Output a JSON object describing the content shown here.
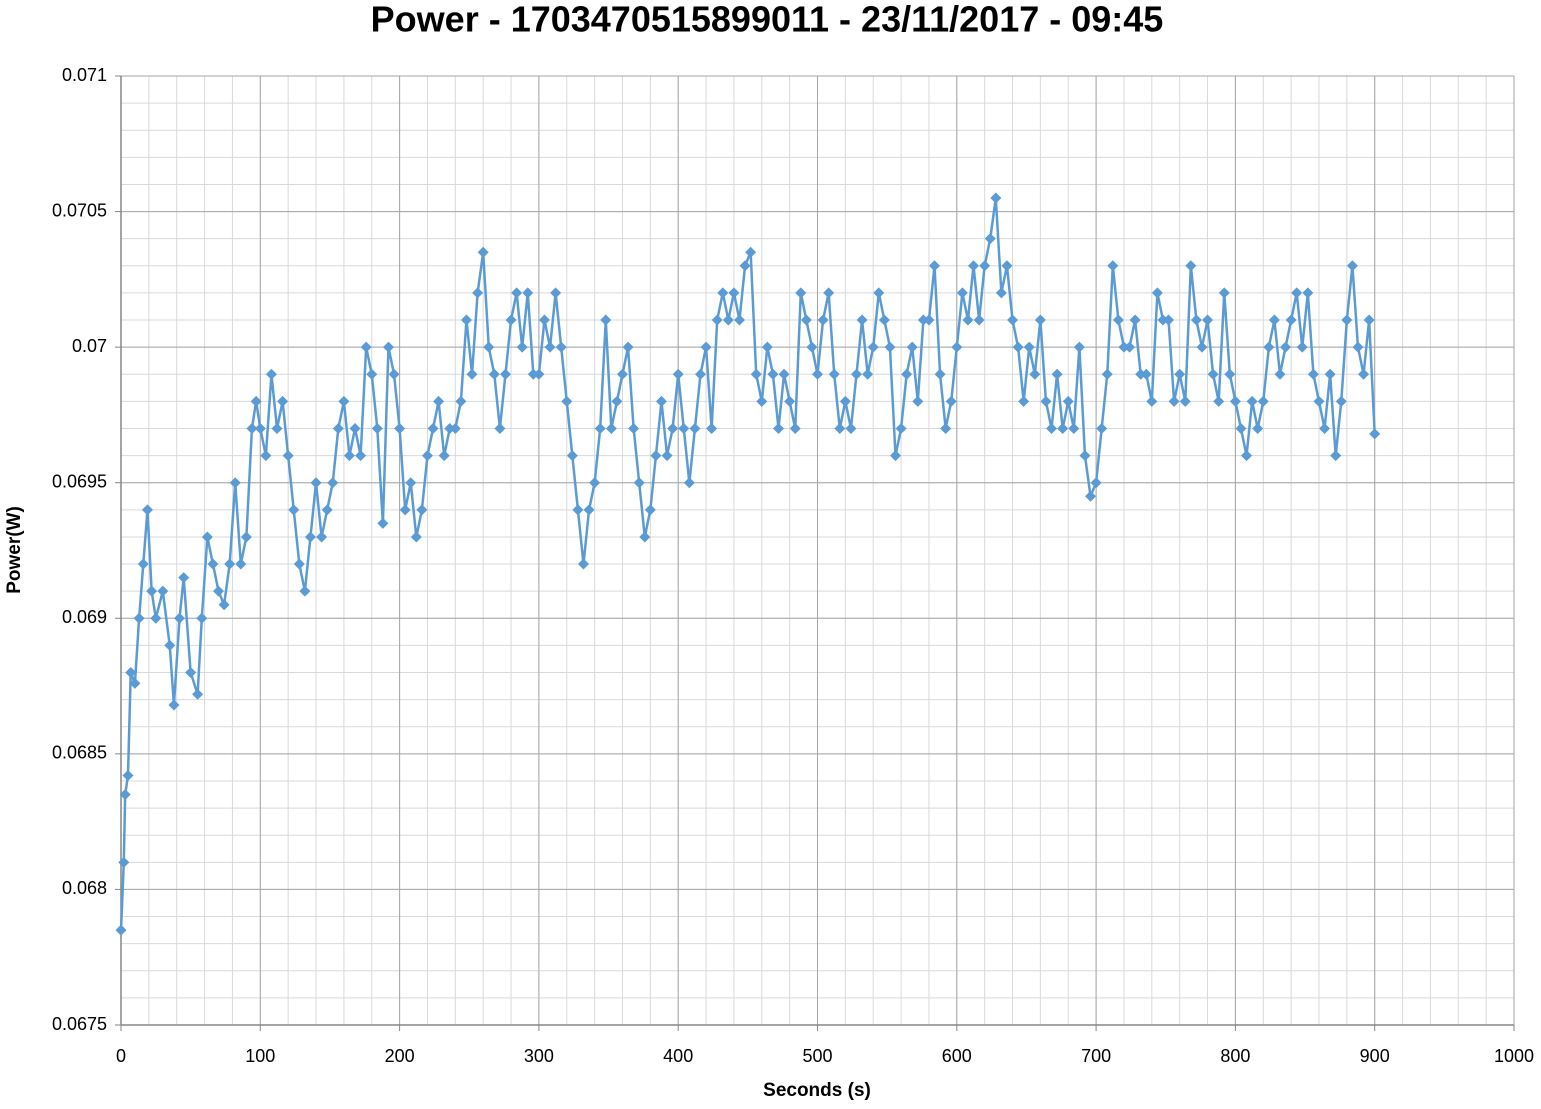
{
  "chart_data": {
    "type": "line",
    "title": "Power - 1703470515899011 - 23/11/2017 - 09:45",
    "x_label": "Seconds (s)",
    "y_label": "Power(W)",
    "xlim": [
      0,
      1000
    ],
    "xticks": [
      0,
      100,
      200,
      300,
      400,
      500,
      600,
      700,
      800,
      900,
      1000
    ],
    "ylim": [
      0.0675,
      0.071
    ],
    "yticks": [
      0.0675,
      0.068,
      0.0685,
      0.069,
      0.0695,
      0.07,
      0.0705,
      0.071
    ],
    "grid": true,
    "minor_grid": {
      "x_step": 20,
      "y_step": 0.0001
    },
    "marker": "diamond",
    "x": [
      0,
      2,
      3,
      5,
      7,
      10,
      13,
      16,
      19,
      22,
      25,
      30,
      35,
      38,
      42,
      45,
      50,
      55,
      58,
      62,
      66,
      70,
      74,
      78,
      82,
      86,
      90,
      94,
      97,
      100,
      104,
      108,
      112,
      116,
      120,
      124,
      128,
      132,
      136,
      140,
      144,
      148,
      152,
      156,
      160,
      164,
      168,
      172,
      176,
      180,
      184,
      188,
      192,
      196,
      200,
      204,
      208,
      212,
      216,
      220,
      224,
      228,
      232,
      236,
      240,
      244,
      248,
      252,
      256,
      260,
      264,
      268,
      272,
      276,
      280,
      284,
      288,
      292,
      296,
      300,
      304,
      308,
      312,
      316,
      320,
      324,
      328,
      332,
      336,
      340,
      344,
      348,
      352,
      356,
      360,
      364,
      368,
      372,
      376,
      380,
      384,
      388,
      392,
      396,
      400,
      404,
      408,
      412,
      416,
      420,
      424,
      428,
      432,
      436,
      440,
      444,
      448,
      452,
      456,
      460,
      464,
      468,
      472,
      476,
      480,
      484,
      488,
      492,
      496,
      500,
      504,
      508,
      512,
      516,
      520,
      524,
      528,
      532,
      536,
      540,
      544,
      548,
      552,
      556,
      560,
      564,
      568,
      572,
      576,
      580,
      584,
      588,
      592,
      596,
      600,
      604,
      608,
      612,
      616,
      620,
      624,
      628,
      632,
      636,
      640,
      644,
      648,
      652,
      656,
      660,
      664,
      668,
      672,
      676,
      680,
      684,
      688,
      692,
      696,
      700,
      704,
      708,
      712,
      716,
      720,
      724,
      728,
      732,
      736,
      740,
      744,
      748,
      752,
      756,
      760,
      764,
      768,
      772,
      776,
      780,
      784,
      788,
      792,
      796,
      800,
      804,
      808,
      812,
      816,
      820,
      824,
      828,
      832,
      836,
      840,
      844,
      848,
      852,
      856,
      860,
      864,
      868,
      872,
      876,
      880,
      884,
      888,
      892,
      896,
      900
    ],
    "series": [
      {
        "color": "#5b9bd5",
        "values": [
          0.06785,
          0.0681,
          0.06835,
          0.06842,
          0.0688,
          0.06876,
          0.069,
          0.0692,
          0.0694,
          0.0691,
          0.069,
          0.0691,
          0.0689,
          0.06868,
          0.069,
          0.06915,
          0.0688,
          0.06872,
          0.069,
          0.0693,
          0.0692,
          0.0691,
          0.06905,
          0.0692,
          0.0695,
          0.0692,
          0.0693,
          0.0697,
          0.0698,
          0.0697,
          0.0696,
          0.0699,
          0.0697,
          0.0698,
          0.0696,
          0.0694,
          0.0692,
          0.0691,
          0.0693,
          0.0695,
          0.0693,
          0.0694,
          0.0695,
          0.0697,
          0.0698,
          0.0696,
          0.0697,
          0.0696,
          0.07,
          0.0699,
          0.0697,
          0.06935,
          0.07,
          0.0699,
          0.0697,
          0.0694,
          0.0695,
          0.0693,
          0.0694,
          0.0696,
          0.0697,
          0.0698,
          0.0696,
          0.0697,
          0.0697,
          0.0698,
          0.0701,
          0.0699,
          0.0702,
          0.07035,
          0.07,
          0.0699,
          0.0697,
          0.0699,
          0.0701,
          0.0702,
          0.07,
          0.0702,
          0.0699,
          0.0699,
          0.0701,
          0.07,
          0.0702,
          0.07,
          0.0698,
          0.0696,
          0.0694,
          0.0692,
          0.0694,
          0.0695,
          0.0697,
          0.0701,
          0.0697,
          0.0698,
          0.0699,
          0.07,
          0.0697,
          0.0695,
          0.0693,
          0.0694,
          0.0696,
          0.0698,
          0.0696,
          0.0697,
          0.0699,
          0.0697,
          0.0695,
          0.0697,
          0.0699,
          0.07,
          0.0697,
          0.0701,
          0.0702,
          0.0701,
          0.0702,
          0.0701,
          0.0703,
          0.07035,
          0.0699,
          0.0698,
          0.07,
          0.0699,
          0.0697,
          0.0699,
          0.0698,
          0.0697,
          0.0702,
          0.0701,
          0.07,
          0.0699,
          0.0701,
          0.0702,
          0.0699,
          0.0697,
          0.0698,
          0.0697,
          0.0699,
          0.0701,
          0.0699,
          0.07,
          0.0702,
          0.0701,
          0.07,
          0.0696,
          0.0697,
          0.0699,
          0.07,
          0.0698,
          0.0701,
          0.0701,
          0.0703,
          0.0699,
          0.0697,
          0.0698,
          0.07,
          0.0702,
          0.0701,
          0.0703,
          0.0701,
          0.0703,
          0.0704,
          0.07055,
          0.0702,
          0.0703,
          0.0701,
          0.07,
          0.0698,
          0.07,
          0.0699,
          0.0701,
          0.0698,
          0.0697,
          0.0699,
          0.0697,
          0.0698,
          0.0697,
          0.07,
          0.0696,
          0.06945,
          0.0695,
          0.0697,
          0.0699,
          0.0703,
          0.0701,
          0.07,
          0.07,
          0.0701,
          0.0699,
          0.0699,
          0.0698,
          0.0702,
          0.0701,
          0.0701,
          0.0698,
          0.0699,
          0.0698,
          0.0703,
          0.0701,
          0.07,
          0.0701,
          0.0699,
          0.0698,
          0.0702,
          0.0699,
          0.0698,
          0.0697,
          0.0696,
          0.0698,
          0.0697,
          0.0698,
          0.07,
          0.0701,
          0.0699,
          0.07,
          0.0701,
          0.0702,
          0.07,
          0.0702,
          0.0699,
          0.0698,
          0.0697,
          0.0699,
          0.0696,
          0.0698,
          0.0701,
          0.0703,
          0.07,
          0.0699,
          0.0701,
          0.06968
        ]
      }
    ]
  }
}
